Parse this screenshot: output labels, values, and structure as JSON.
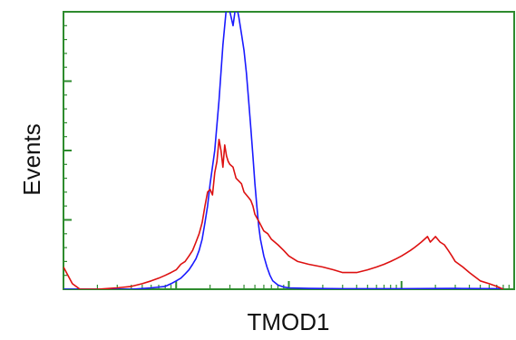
{
  "chart_data": {
    "type": "line",
    "title": "",
    "xlabel": "TMOD1",
    "ylabel": "Events",
    "x_scale": "log",
    "xlim": [
      1,
      10000
    ],
    "ylim": [
      0,
      100
    ],
    "grid": false,
    "legend": "none",
    "colors": {
      "frame": "#2e8b2e",
      "ticks": "#2e8b2e"
    },
    "series": [
      {
        "color": "#1a1aff",
        "x": [
          1,
          4,
          6,
          8,
          9,
          10,
          11,
          12,
          13,
          14,
          15,
          16,
          17,
          18,
          19,
          20,
          22,
          24,
          26,
          28,
          30,
          32,
          34,
          36,
          38,
          40,
          42,
          44,
          46,
          48,
          50,
          52,
          54,
          56,
          60,
          64,
          68,
          72,
          80,
          90,
          100,
          150,
          300,
          1000,
          3000,
          8000
        ],
        "y": [
          0,
          0,
          0.5,
          1,
          2,
          3,
          4,
          5.5,
          7,
          9,
          11,
          14,
          18,
          24,
          30,
          38,
          50,
          68,
          88,
          102,
          100,
          95,
          103,
          98,
          92,
          86,
          78,
          68,
          58,
          48,
          38,
          30,
          23,
          18,
          12,
          8,
          5,
          3,
          1.5,
          0.8,
          0.5,
          0.3,
          0.2,
          0.2,
          0.3,
          0.2
        ]
      },
      {
        "color": "#dd1111",
        "x": [
          1,
          1.2,
          1.4,
          2,
          3,
          4,
          5,
          6,
          7,
          8,
          9,
          10,
          11,
          12,
          13,
          14,
          15,
          16,
          17,
          18,
          19,
          20,
          21,
          22,
          23,
          24,
          25,
          26,
          27,
          28,
          29,
          30,
          32,
          34,
          36,
          38,
          40,
          42,
          44,
          46,
          48,
          50,
          55,
          60,
          65,
          70,
          80,
          90,
          100,
          120,
          150,
          200,
          250,
          300,
          400,
          500,
          600,
          700,
          800,
          900,
          1000,
          1100,
          1200,
          1300,
          1400,
          1500,
          1600,
          1700,
          1800,
          1900,
          2000,
          2200,
          2400,
          2600,
          2800,
          3000,
          3500,
          4000,
          5000,
          6000,
          7000,
          8000
        ],
        "y": [
          8,
          2,
          0,
          0,
          0.5,
          1,
          2,
          3,
          4,
          5,
          6,
          7,
          9,
          10,
          12,
          14,
          17,
          20,
          24,
          30,
          35,
          36,
          34,
          42,
          46,
          54,
          50,
          44,
          52,
          48,
          46,
          45,
          44,
          40,
          39,
          38,
          35,
          34,
          33,
          32,
          30,
          27,
          24,
          21,
          20,
          18,
          16,
          14,
          12,
          10,
          9,
          8,
          7,
          6,
          6,
          7,
          8,
          9,
          10,
          11,
          12,
          13,
          14,
          15,
          16,
          17,
          18,
          19,
          17,
          18,
          19,
          17,
          16,
          14,
          12,
          10,
          8,
          6,
          3,
          2,
          1,
          0
        ]
      }
    ]
  }
}
